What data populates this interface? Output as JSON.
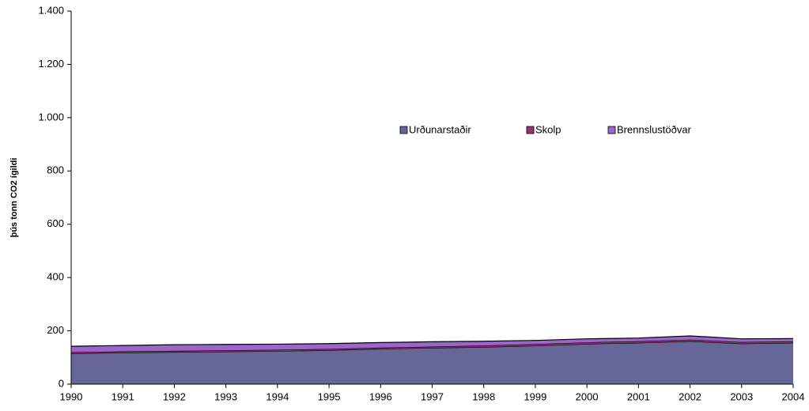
{
  "chart_data": {
    "type": "stacked_area",
    "y_label": "þús tonn CO2 ígildi",
    "categories": [
      "1990",
      "1991",
      "1992",
      "1993",
      "1994",
      "1995",
      "1996",
      "1997",
      "1998",
      "1999",
      "2000",
      "2001",
      "2002",
      "2003",
      "2004"
    ],
    "series": [
      {
        "name": "Urðunarstaðir",
        "color": "#666699",
        "values": [
          115,
          118,
          120,
          122,
          124,
          127,
          132,
          136,
          139,
          144,
          151,
          155,
          161,
          152,
          155
        ]
      },
      {
        "name": "Skolp",
        "color": "#993366",
        "values": [
          5,
          5,
          5,
          5,
          5,
          5,
          5,
          5,
          6,
          6,
          6,
          6,
          6,
          6,
          6
        ]
      },
      {
        "name": "Brennslustöðvar",
        "color": "#9966cc",
        "values": [
          22,
          22,
          23,
          22,
          21,
          20,
          19,
          18,
          16,
          14,
          13,
          12,
          14,
          12,
          10
        ]
      }
    ],
    "ylim": [
      0,
      1400
    ],
    "yticks": [
      0,
      200,
      400,
      600,
      800,
      {
        "value": 1000,
        "label": "1.000"
      },
      {
        "value": 1200,
        "label": "1.200"
      },
      {
        "value": 1400,
        "label": "1.400"
      }
    ],
    "grid": false,
    "legend": "center"
  }
}
